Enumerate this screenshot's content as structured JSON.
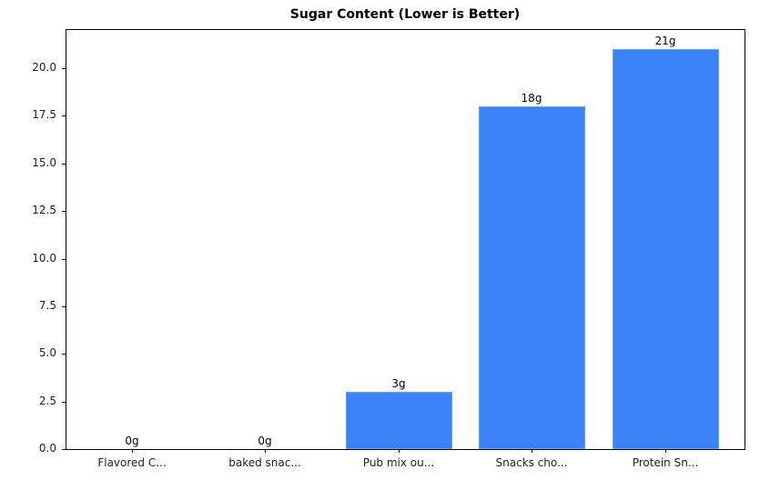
{
  "chart_data": {
    "type": "bar",
    "title": "Sugar Content (Lower is Better)",
    "xlabel": "",
    "ylabel": "",
    "categories": [
      "Flavored C...",
      "baked snac...",
      "Pub mix ou...",
      "Snacks cho...",
      "Protein Sn..."
    ],
    "values": [
      0,
      0,
      3,
      18,
      21
    ],
    "value_labels": [
      "0g",
      "0g",
      "3g",
      "18g",
      "21g"
    ],
    "ylim": [
      0,
      22
    ],
    "yticks": [
      "0.0",
      "2.5",
      "5.0",
      "7.5",
      "10.0",
      "12.5",
      "15.0",
      "17.5",
      "20.0"
    ],
    "bar_color": "#3b82f6",
    "grid": false,
    "legend": null
  }
}
